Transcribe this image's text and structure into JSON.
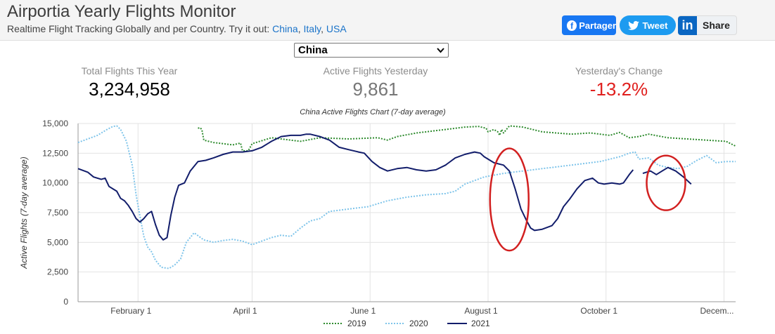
{
  "header": {
    "title": "Airportia Yearly Flights Monitor",
    "subtitle_prefix": "Realtime Flight Tracking Globally and per Country. Try it out: ",
    "links": [
      "China",
      "Italy",
      "USA"
    ],
    "separator": ", "
  },
  "share": {
    "facebook_label": "Partager",
    "facebook_icon": "f",
    "twitter_label": "Tweet",
    "linkedin_icon": "in",
    "linkedin_label": "Share"
  },
  "country_select": {
    "selected": "China"
  },
  "stats": [
    {
      "label": "Total Flights This Year",
      "value": "3,234,958",
      "color": "#000000"
    },
    {
      "label": "Active Flights Yesterday",
      "value": "9,861",
      "color": "#777777"
    },
    {
      "label": "Yesterday's Change",
      "value": "-13.2%",
      "color": "#e0201e"
    }
  ],
  "chart_data": {
    "type": "line",
    "title": "China Active Flights Chart (7-day average)",
    "ylabel": "Active Flights (7-day average)",
    "ylim": [
      0,
      15000
    ],
    "yticks": [
      "0",
      "2,500",
      "5,000",
      "7,500",
      "10,000",
      "12,500",
      "15,000"
    ],
    "xlim": [
      0,
      340
    ],
    "xticks": [
      {
        "label": "February 1",
        "x": 31
      },
      {
        "label": "April 1",
        "x": 90
      },
      {
        "label": "June 1",
        "x": 151
      },
      {
        "label": "August 1",
        "x": 212
      },
      {
        "label": "October 1",
        "x": 273
      },
      {
        "label": "Decem...",
        "x": 334
      }
    ],
    "grid": true,
    "legend_placement": "bottom",
    "series": [
      {
        "name": "2019",
        "color": "#2e8b2e",
        "dash": "dotted",
        "points": [
          [
            62,
            14600
          ],
          [
            63,
            14650
          ],
          [
            64,
            14500
          ],
          [
            65,
            13600
          ],
          [
            70,
            13400
          ],
          [
            80,
            13200
          ],
          [
            84,
            13350
          ],
          [
            85,
            12700
          ],
          [
            88,
            12700
          ],
          [
            90,
            13300
          ],
          [
            100,
            13800
          ],
          [
            115,
            13500
          ],
          [
            125,
            13800
          ],
          [
            140,
            13700
          ],
          [
            155,
            13800
          ],
          [
            160,
            13600
          ],
          [
            165,
            13900
          ],
          [
            175,
            14200
          ],
          [
            185,
            14400
          ],
          [
            200,
            14700
          ],
          [
            207,
            14750
          ],
          [
            211,
            14600
          ],
          [
            212,
            14300
          ],
          [
            215,
            14500
          ],
          [
            217,
            14300
          ],
          [
            218,
            14000
          ],
          [
            219,
            14500
          ],
          [
            220,
            14200
          ],
          [
            223,
            14800
          ],
          [
            230,
            14700
          ],
          [
            240,
            14300
          ],
          [
            255,
            14100
          ],
          [
            265,
            14200
          ],
          [
            275,
            14000
          ],
          [
            280,
            14250
          ],
          [
            285,
            13800
          ],
          [
            290,
            13900
          ],
          [
            295,
            14100
          ],
          [
            305,
            13800
          ],
          [
            315,
            13700
          ],
          [
            325,
            13600
          ],
          [
            335,
            13500
          ],
          [
            340,
            13100
          ]
        ]
      },
      {
        "name": "2020",
        "color": "#7ec4ea",
        "dash": "dotted",
        "points": [
          [
            0,
            13400
          ],
          [
            5,
            13700
          ],
          [
            10,
            14000
          ],
          [
            15,
            14500
          ],
          [
            18,
            14750
          ],
          [
            20,
            14800
          ],
          [
            22,
            14500
          ],
          [
            25,
            13500
          ],
          [
            28,
            11500
          ],
          [
            30,
            9000
          ],
          [
            32,
            7200
          ],
          [
            34,
            5500
          ],
          [
            36,
            4600
          ],
          [
            38,
            4200
          ],
          [
            40,
            3500
          ],
          [
            43,
            2900
          ],
          [
            47,
            2800
          ],
          [
            50,
            3100
          ],
          [
            53,
            3600
          ],
          [
            56,
            5000
          ],
          [
            60,
            5800
          ],
          [
            65,
            5200
          ],
          [
            70,
            5000
          ],
          [
            75,
            5150
          ],
          [
            80,
            5250
          ],
          [
            85,
            5100
          ],
          [
            90,
            4800
          ],
          [
            95,
            5100
          ],
          [
            100,
            5400
          ],
          [
            105,
            5600
          ],
          [
            110,
            5500
          ],
          [
            115,
            6200
          ],
          [
            120,
            6800
          ],
          [
            125,
            7000
          ],
          [
            130,
            7600
          ],
          [
            140,
            7800
          ],
          [
            150,
            8000
          ],
          [
            160,
            8500
          ],
          [
            170,
            8800
          ],
          [
            180,
            9000
          ],
          [
            190,
            9100
          ],
          [
            195,
            9300
          ],
          [
            200,
            9900
          ],
          [
            210,
            10500
          ],
          [
            220,
            10800
          ],
          [
            230,
            11000
          ],
          [
            240,
            11200
          ],
          [
            250,
            11400
          ],
          [
            260,
            11600
          ],
          [
            270,
            11800
          ],
          [
            280,
            12200
          ],
          [
            285,
            12500
          ],
          [
            288,
            12600
          ],
          [
            290,
            12000
          ],
          [
            295,
            12100
          ],
          [
            300,
            11500
          ],
          [
            305,
            11300
          ],
          [
            310,
            11200
          ],
          [
            315,
            11400
          ],
          [
            320,
            11900
          ],
          [
            325,
            12300
          ],
          [
            330,
            11700
          ],
          [
            335,
            11800
          ],
          [
            340,
            11800
          ]
        ]
      },
      {
        "name": "2021",
        "color": "#121d6b",
        "dash": "solid",
        "points": [
          [
            0,
            11200
          ],
          [
            5,
            10900
          ],
          [
            8,
            10500
          ],
          [
            12,
            10300
          ],
          [
            14,
            10400
          ],
          [
            16,
            9700
          ],
          [
            18,
            9500
          ],
          [
            20,
            9300
          ],
          [
            22,
            8700
          ],
          [
            24,
            8500
          ],
          [
            26,
            8100
          ],
          [
            28,
            7600
          ],
          [
            30,
            7000
          ],
          [
            32,
            6700
          ],
          [
            34,
            7000
          ],
          [
            36,
            7400
          ],
          [
            38,
            7600
          ],
          [
            40,
            6500
          ],
          [
            42,
            5600
          ],
          [
            44,
            5200
          ],
          [
            46,
            5400
          ],
          [
            48,
            7300
          ],
          [
            50,
            8800
          ],
          [
            52,
            9800
          ],
          [
            55,
            10000
          ],
          [
            58,
            11000
          ],
          [
            62,
            11800
          ],
          [
            66,
            11900
          ],
          [
            70,
            12100
          ],
          [
            75,
            12400
          ],
          [
            80,
            12600
          ],
          [
            85,
            12600
          ],
          [
            90,
            12700
          ],
          [
            95,
            13000
          ],
          [
            100,
            13500
          ],
          [
            105,
            13900
          ],
          [
            110,
            14000
          ],
          [
            115,
            14000
          ],
          [
            118,
            14100
          ],
          [
            120,
            14100
          ],
          [
            125,
            13900
          ],
          [
            130,
            13600
          ],
          [
            135,
            13000
          ],
          [
            140,
            12800
          ],
          [
            145,
            12600
          ],
          [
            148,
            12500
          ],
          [
            152,
            11800
          ],
          [
            156,
            11300
          ],
          [
            160,
            11000
          ],
          [
            165,
            11200
          ],
          [
            170,
            11300
          ],
          [
            175,
            11100
          ],
          [
            180,
            11000
          ],
          [
            185,
            11100
          ],
          [
            190,
            11500
          ],
          [
            195,
            12100
          ],
          [
            200,
            12400
          ],
          [
            205,
            12600
          ],
          [
            208,
            12500
          ],
          [
            210,
            12200
          ],
          [
            215,
            11700
          ],
          [
            220,
            11500
          ],
          [
            223,
            11000
          ],
          [
            226,
            9500
          ],
          [
            229,
            7800
          ],
          [
            232,
            6800
          ],
          [
            234,
            6200
          ],
          [
            236,
            6000
          ],
          [
            240,
            6100
          ],
          [
            245,
            6400
          ],
          [
            248,
            7000
          ],
          [
            251,
            8000
          ],
          [
            254,
            8600
          ],
          [
            258,
            9500
          ],
          [
            262,
            10200
          ],
          [
            266,
            10400
          ],
          [
            269,
            10000
          ],
          [
            272,
            9900
          ],
          [
            276,
            10000
          ],
          [
            280,
            9900
          ],
          [
            282,
            10000
          ],
          [
            285,
            10700
          ],
          [
            287,
            11100
          ],
          [
            290,
            null
          ],
          [
            292,
            10800
          ],
          [
            296,
            11000
          ],
          [
            299,
            10700
          ],
          [
            302,
            11000
          ],
          [
            305,
            11300
          ],
          [
            309,
            11000
          ],
          [
            313,
            10500
          ],
          [
            317,
            9900
          ]
        ]
      }
    ],
    "annotations": [
      {
        "type": "ellipse",
        "color": "#d22020",
        "cx": 223,
        "cy": 8600,
        "rx": 10,
        "ry": 4300
      },
      {
        "type": "ellipse",
        "color": "#d22020",
        "cx": 304,
        "cy": 10000,
        "rx": 10,
        "ry": 2300
      }
    ]
  }
}
